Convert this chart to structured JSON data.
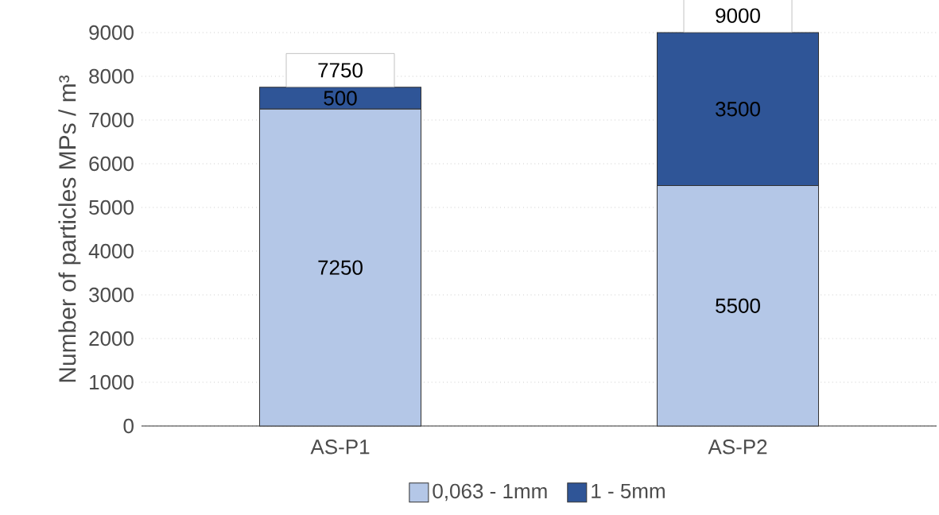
{
  "chart_data": {
    "type": "bar",
    "stacked": true,
    "ylabel": "Number of particles MPs / m³",
    "categories": [
      "AS-P1",
      "AS-P2"
    ],
    "series": [
      {
        "name": "0,063 - 1mm",
        "color": "#b4c7e7",
        "values": [
          7250,
          5500
        ]
      },
      {
        "name": "1 - 5mm",
        "color": "#2f5597",
        "values": [
          500,
          3500
        ]
      }
    ],
    "totals": [
      "7750",
      "9000"
    ],
    "data_labels": true,
    "ylim": [
      0,
      9000
    ],
    "yticks": [
      0,
      1000,
      2000,
      3000,
      4000,
      5000,
      6000,
      7000,
      8000,
      9000
    ],
    "grid": "y",
    "legend": "bottom"
  }
}
